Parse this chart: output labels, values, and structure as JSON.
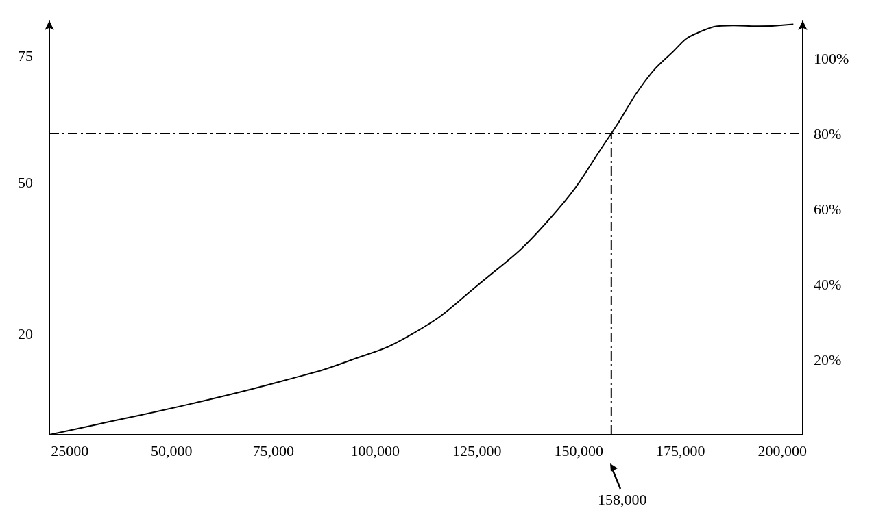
{
  "chart_data": {
    "type": "line",
    "x": [
      20000,
      31500,
      54700,
      78000,
      93500,
      109000,
      124400,
      143000,
      158000,
      166000,
      173000,
      178700,
      188000,
      194000,
      202700
    ],
    "series": [
      {
        "color": "#000000",
        "axis": "y2",
        "values": [
          0,
          2.7,
          8.2,
          14.5,
          19.6,
          26.7,
          39,
          57.5,
          80,
          93.5,
          101.6,
          106.5,
          108.7,
          108.5,
          109
        ]
      }
    ],
    "xlim": [
      20000,
      205000
    ],
    "xticks": [
      {
        "value": 25000,
        "label": "25000"
      },
      {
        "value": 50000,
        "label": "50,000"
      },
      {
        "value": 75000,
        "label": "75,000"
      },
      {
        "value": 100000,
        "label": "100,000"
      },
      {
        "value": 125000,
        "label": "125,000"
      },
      {
        "value": 150000,
        "label": "150,000"
      },
      {
        "value": 175000,
        "label": "175,000"
      },
      {
        "value": 200000,
        "label": "200,000"
      }
    ],
    "ylim": [
      0,
      82
    ],
    "yticks": [
      20,
      50,
      75
    ],
    "y2lim": [
      0,
      110
    ],
    "y2ticks": [
      {
        "value": 20,
        "label": "20%"
      },
      {
        "value": 40,
        "label": "40%"
      },
      {
        "value": 60,
        "label": "60%"
      },
      {
        "value": 80,
        "label": "80%"
      },
      {
        "value": 100,
        "label": "100%"
      }
    ],
    "ref_lines": [
      {
        "axis": "y2",
        "value": 80,
        "line_style": "dashed",
        "color": "#000000"
      },
      {
        "axis": "x",
        "value": 158000,
        "line_style": "dashed",
        "color": "#000000"
      }
    ],
    "annotations": [
      "158,000"
    ],
    "grid": false,
    "marker": "none",
    "line_style": "solid"
  }
}
